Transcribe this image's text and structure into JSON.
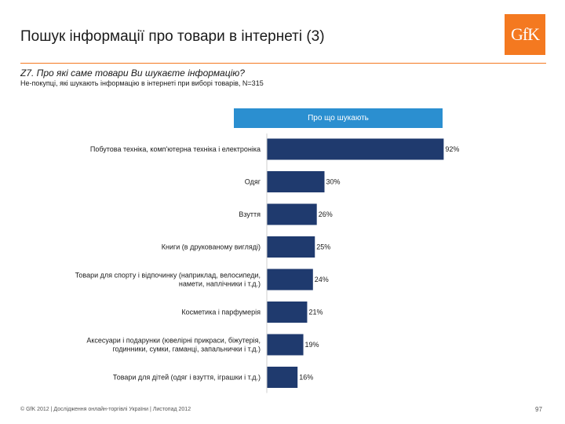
{
  "header": {
    "title": "Пошук інформації про товари в інтернеті (3)",
    "logo_text": "GfK",
    "question": "Z7. Про які саме товари Ви шукаєте інформацію?",
    "subtitle": "Не-покупці, які шукають інформацію в інтернеті при виборі товарів, N=315"
  },
  "chart_header": "Про що шукають",
  "colors": {
    "bar": "#1f3a6e",
    "header_box": "#2b8fd0",
    "accent": "#f47920"
  },
  "chart_data": {
    "type": "bar",
    "orientation": "horizontal",
    "title": "Про що шукають",
    "categories": [
      [
        "Побутова техніка, комп'ютерна техніка і електроніка"
      ],
      [
        "Одяг"
      ],
      [
        "Взуття"
      ],
      [
        "Книги (в друкованому вигляді)"
      ],
      [
        "Товари для спорту і відпочинку (наприклад, велосипеди,",
        "намети, наплічники і т.д.)"
      ],
      [
        "Косметика і парфумерія"
      ],
      [
        "Аксесуари і подарунки (ювелірні прикраси, біжутерія,",
        "годинники, сумки, гаманці, запальнички і т.д.)"
      ],
      [
        "Товари для дітей (одяг і взуття, іграшки і т.д.)"
      ]
    ],
    "values": [
      92,
      30,
      26,
      25,
      24,
      21,
      19,
      16
    ],
    "value_labels": [
      "92%",
      "30%",
      "26%",
      "25%",
      "24%",
      "21%",
      "19%",
      "16%"
    ],
    "xlim": [
      0,
      100
    ],
    "grid": false
  },
  "footer": {
    "text": "© GfK 2012 | Дослідження онлайн-торгівлі України | Листопад 2012",
    "page": "97"
  }
}
